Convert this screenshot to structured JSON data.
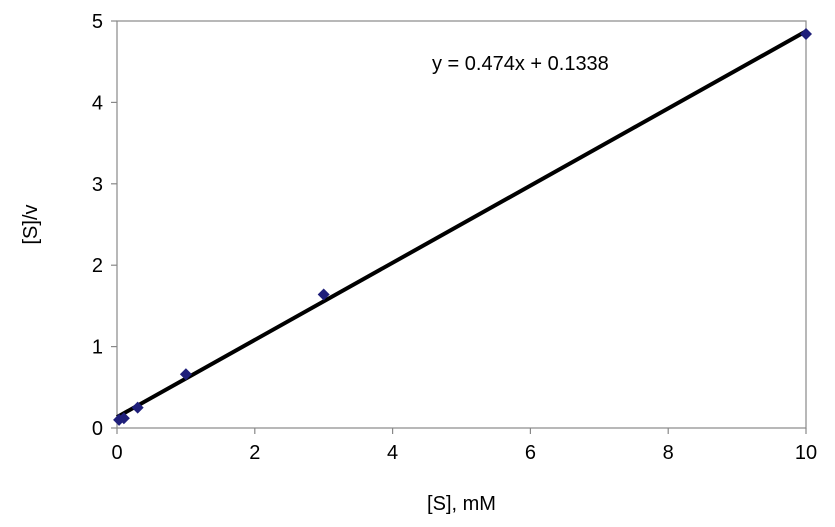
{
  "chart_data": {
    "type": "scatter",
    "title": "",
    "xlabel": "[S], mM",
    "ylabel": "[S]/v",
    "xlim": [
      0,
      10
    ],
    "ylim": [
      0,
      5
    ],
    "x_ticks": [
      0,
      2,
      4,
      6,
      8,
      10
    ],
    "y_ticks": [
      0,
      1,
      2,
      3,
      4,
      5
    ],
    "grid": false,
    "legend": "none",
    "series": [
      {
        "marker": "diamond",
        "color": "#1f1f7a",
        "points": [
          {
            "x": 0.03,
            "y": 0.1
          },
          {
            "x": 0.1,
            "y": 0.12
          },
          {
            "x": 0.3,
            "y": 0.25
          },
          {
            "x": 1,
            "y": 0.66
          },
          {
            "x": 3,
            "y": 1.64
          },
          {
            "x": 10,
            "y": 4.84
          }
        ]
      }
    ],
    "trendline": {
      "type": "linear",
      "slope": 0.474,
      "intercept": 0.1338,
      "x_range": [
        0,
        10
      ],
      "color": "#000000",
      "equation_label": "y = 0.474x + 0.1338"
    }
  }
}
